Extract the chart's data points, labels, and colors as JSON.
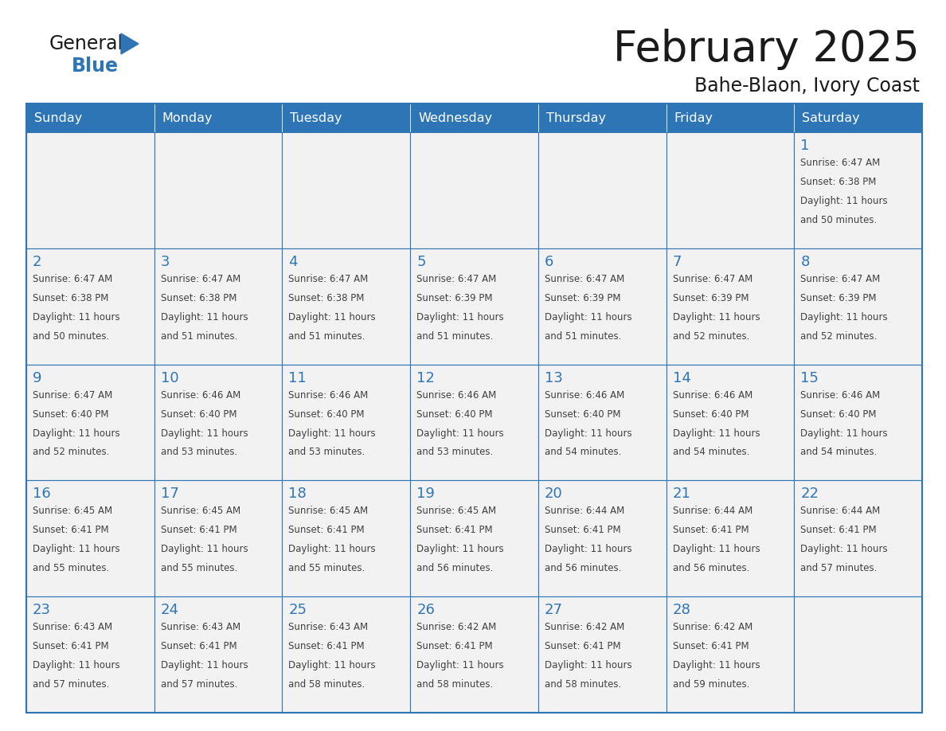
{
  "title": "February 2025",
  "subtitle": "Bahe-Blaon, Ivory Coast",
  "header_bg": "#2E75B6",
  "header_text_color": "#FFFFFF",
  "cell_bg_odd": "#F2F2F2",
  "cell_bg_even": "#FFFFFF",
  "cell_border_color": "#2E75B6",
  "day_number_color": "#2E75B6",
  "info_text_color": "#404040",
  "days_of_week": [
    "Sunday",
    "Monday",
    "Tuesday",
    "Wednesday",
    "Thursday",
    "Friday",
    "Saturday"
  ],
  "title_color": "#1a1a1a",
  "subtitle_color": "#1a1a1a",
  "logo_general_color": "#1a1a1a",
  "logo_blue_color": "#2E75B6",
  "calendar": [
    [
      null,
      null,
      null,
      null,
      null,
      null,
      1
    ],
    [
      2,
      3,
      4,
      5,
      6,
      7,
      8
    ],
    [
      9,
      10,
      11,
      12,
      13,
      14,
      15
    ],
    [
      16,
      17,
      18,
      19,
      20,
      21,
      22
    ],
    [
      23,
      24,
      25,
      26,
      27,
      28,
      null
    ]
  ],
  "cell_data": {
    "1": {
      "sunrise": "6:47 AM",
      "sunset": "6:38 PM",
      "daylight": "11 hours and 50 minutes"
    },
    "2": {
      "sunrise": "6:47 AM",
      "sunset": "6:38 PM",
      "daylight": "11 hours and 50 minutes"
    },
    "3": {
      "sunrise": "6:47 AM",
      "sunset": "6:38 PM",
      "daylight": "11 hours and 51 minutes"
    },
    "4": {
      "sunrise": "6:47 AM",
      "sunset": "6:38 PM",
      "daylight": "11 hours and 51 minutes"
    },
    "5": {
      "sunrise": "6:47 AM",
      "sunset": "6:39 PM",
      "daylight": "11 hours and 51 minutes"
    },
    "6": {
      "sunrise": "6:47 AM",
      "sunset": "6:39 PM",
      "daylight": "11 hours and 51 minutes"
    },
    "7": {
      "sunrise": "6:47 AM",
      "sunset": "6:39 PM",
      "daylight": "11 hours and 52 minutes"
    },
    "8": {
      "sunrise": "6:47 AM",
      "sunset": "6:39 PM",
      "daylight": "11 hours and 52 minutes"
    },
    "9": {
      "sunrise": "6:47 AM",
      "sunset": "6:40 PM",
      "daylight": "11 hours and 52 minutes"
    },
    "10": {
      "sunrise": "6:46 AM",
      "sunset": "6:40 PM",
      "daylight": "11 hours and 53 minutes"
    },
    "11": {
      "sunrise": "6:46 AM",
      "sunset": "6:40 PM",
      "daylight": "11 hours and 53 minutes"
    },
    "12": {
      "sunrise": "6:46 AM",
      "sunset": "6:40 PM",
      "daylight": "11 hours and 53 minutes"
    },
    "13": {
      "sunrise": "6:46 AM",
      "sunset": "6:40 PM",
      "daylight": "11 hours and 54 minutes"
    },
    "14": {
      "sunrise": "6:46 AM",
      "sunset": "6:40 PM",
      "daylight": "11 hours and 54 minutes"
    },
    "15": {
      "sunrise": "6:46 AM",
      "sunset": "6:40 PM",
      "daylight": "11 hours and 54 minutes"
    },
    "16": {
      "sunrise": "6:45 AM",
      "sunset": "6:41 PM",
      "daylight": "11 hours and 55 minutes"
    },
    "17": {
      "sunrise": "6:45 AM",
      "sunset": "6:41 PM",
      "daylight": "11 hours and 55 minutes"
    },
    "18": {
      "sunrise": "6:45 AM",
      "sunset": "6:41 PM",
      "daylight": "11 hours and 55 minutes"
    },
    "19": {
      "sunrise": "6:45 AM",
      "sunset": "6:41 PM",
      "daylight": "11 hours and 56 minutes"
    },
    "20": {
      "sunrise": "6:44 AM",
      "sunset": "6:41 PM",
      "daylight": "11 hours and 56 minutes"
    },
    "21": {
      "sunrise": "6:44 AM",
      "sunset": "6:41 PM",
      "daylight": "11 hours and 56 minutes"
    },
    "22": {
      "sunrise": "6:44 AM",
      "sunset": "6:41 PM",
      "daylight": "11 hours and 57 minutes"
    },
    "23": {
      "sunrise": "6:43 AM",
      "sunset": "6:41 PM",
      "daylight": "11 hours and 57 minutes"
    },
    "24": {
      "sunrise": "6:43 AM",
      "sunset": "6:41 PM",
      "daylight": "11 hours and 57 minutes"
    },
    "25": {
      "sunrise": "6:43 AM",
      "sunset": "6:41 PM",
      "daylight": "11 hours and 58 minutes"
    },
    "26": {
      "sunrise": "6:42 AM",
      "sunset": "6:41 PM",
      "daylight": "11 hours and 58 minutes"
    },
    "27": {
      "sunrise": "6:42 AM",
      "sunset": "6:41 PM",
      "daylight": "11 hours and 58 minutes"
    },
    "28": {
      "sunrise": "6:42 AM",
      "sunset": "6:41 PM",
      "daylight": "11 hours and 59 minutes"
    }
  }
}
